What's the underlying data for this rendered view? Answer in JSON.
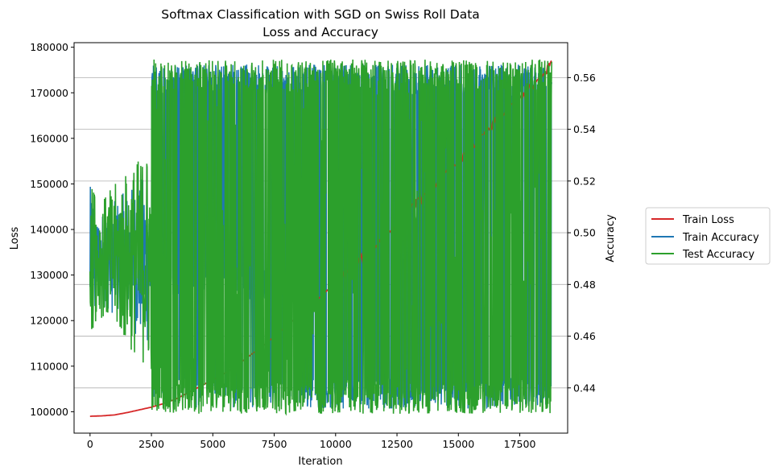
{
  "chart_data": {
    "type": "line",
    "title_line1": "Softmax Classification with SGD on Swiss Roll Data",
    "title_line2": "Loss and Accuracy",
    "xlabel": "Iteration",
    "ylabel_left": "Loss",
    "ylabel_right": "Accuracy",
    "xlim": [
      -650,
      19450
    ],
    "ylim_left": [
      95300,
      181000
    ],
    "ylim_right": [
      0.4225,
      0.5735
    ],
    "x_ticks": [
      0,
      2500,
      5000,
      7500,
      10000,
      12500,
      15000,
      17500
    ],
    "x_tick_labels": [
      "0",
      "2500",
      "5000",
      "7500",
      "10000",
      "12500",
      "15000",
      "17500"
    ],
    "y_left_ticks": [
      100000,
      110000,
      120000,
      130000,
      140000,
      150000,
      160000,
      170000,
      180000
    ],
    "y_left_tick_labels": [
      "100000",
      "110000",
      "120000",
      "130000",
      "140000",
      "150000",
      "160000",
      "170000",
      "180000"
    ],
    "y_right_ticks": [
      0.44,
      0.46,
      0.48,
      0.5,
      0.52,
      0.54,
      0.56
    ],
    "y_right_tick_labels": [
      "0.44",
      "0.46",
      "0.48",
      "0.50",
      "0.52",
      "0.54",
      "0.56"
    ],
    "grid": "horizontal-right-axis",
    "legend_position": "outside-right",
    "series": [
      {
        "name": "Train Loss",
        "axis": "left",
        "color": "#d62728",
        "x": [
          0,
          500,
          1000,
          1500,
          2000,
          2500,
          3000,
          3500,
          4000,
          4500,
          5000,
          5500,
          6000,
          6500,
          7000,
          7500,
          8000,
          8500,
          9000,
          9500,
          10000,
          10500,
          11000,
          11500,
          12000,
          12500,
          13000,
          13500,
          14000,
          14500,
          15000,
          15500,
          16000,
          16500,
          17000,
          17500,
          18000,
          18500,
          18800
        ],
        "y": [
          99000,
          99100,
          99300,
          99800,
          100400,
          101000,
          101800,
          102800,
          104200,
          105600,
          107000,
          108500,
          110300,
          112300,
          114300,
          116500,
          118800,
          121000,
          123300,
          125800,
          128400,
          130800,
          133300,
          135800,
          138500,
          141500,
          144200,
          146900,
          149700,
          152200,
          154900,
          157700,
          160400,
          163400,
          165900,
          168800,
          171300,
          174000,
          177000
        ]
      },
      {
        "name": "Train Accuracy",
        "axis": "right",
        "color": "#1f77b4",
        "x_start": 0,
        "x_end": 18800,
        "early_phase": {
          "x_end": 2500,
          "center": 0.49,
          "amplitude": 0.035
        },
        "oscillation": {
          "phase_ranges": [
            [
              2500,
              8500
            ],
            [
              8500,
              18800
            ]
          ],
          "low": 0.432,
          "high": 0.565,
          "mid_band": [
            0.474,
            0.487
          ]
        }
      },
      {
        "name": "Test Accuracy",
        "axis": "right",
        "color": "#2ca02c",
        "x_start": 0,
        "x_end": 18800,
        "early_phase": {
          "x_end": 2500,
          "center": 0.49,
          "amplitude": 0.045
        },
        "oscillation": {
          "low": 0.43,
          "high": 0.567,
          "peak_max": 0.57
        }
      }
    ]
  }
}
